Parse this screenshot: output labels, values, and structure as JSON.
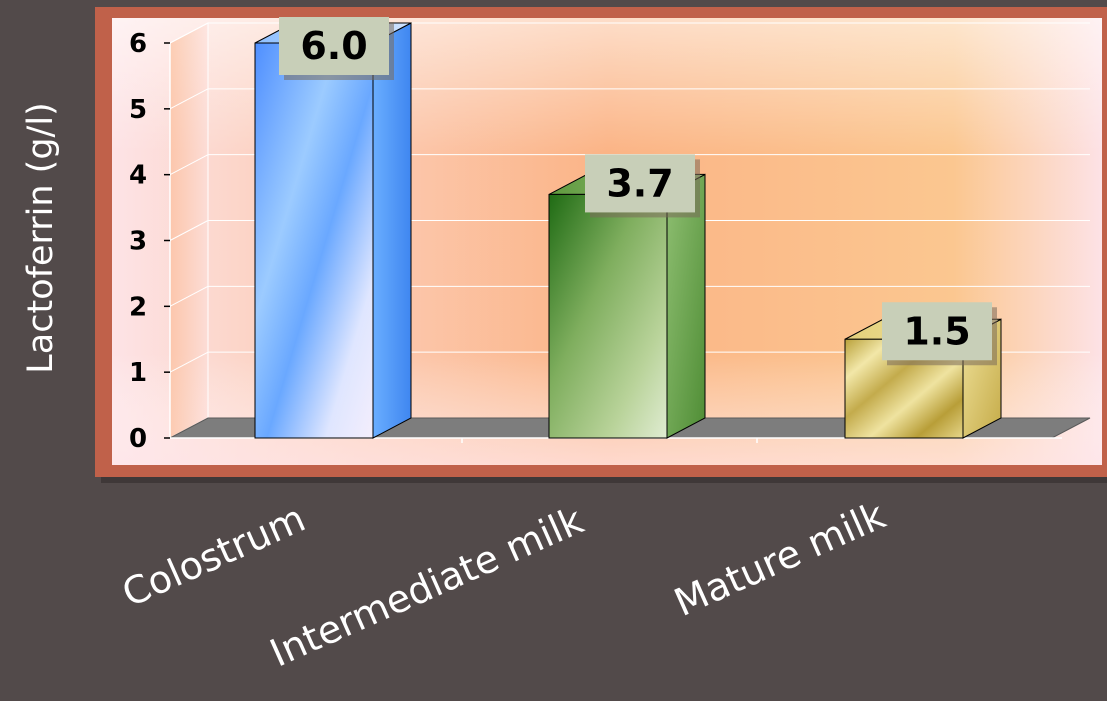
{
  "chart_data": {
    "type": "bar",
    "categories": [
      "Colostrum",
      "Intermediate milk",
      "Mature milk"
    ],
    "values": [
      6.0,
      3.7,
      1.5
    ],
    "value_labels": [
      "6.0",
      "3.7",
      "1.5"
    ],
    "ylabel": "Lactoferrin (g/l)",
    "ylim": [
      0,
      6
    ],
    "yticks": [
      "0",
      "1",
      "2",
      "3",
      "4",
      "5",
      "6"
    ],
    "grid": true,
    "legend": "none",
    "three_d": true,
    "colors": {
      "background": "#524a4a",
      "frame": "#c0614a",
      "bar_colostrum": "#5aa2ff",
      "bar_intermediate": "#4f8a2c",
      "bar_mature": "#d6c46a",
      "label_box": "#c8cfb8",
      "floor": "#7d7d7d"
    }
  }
}
